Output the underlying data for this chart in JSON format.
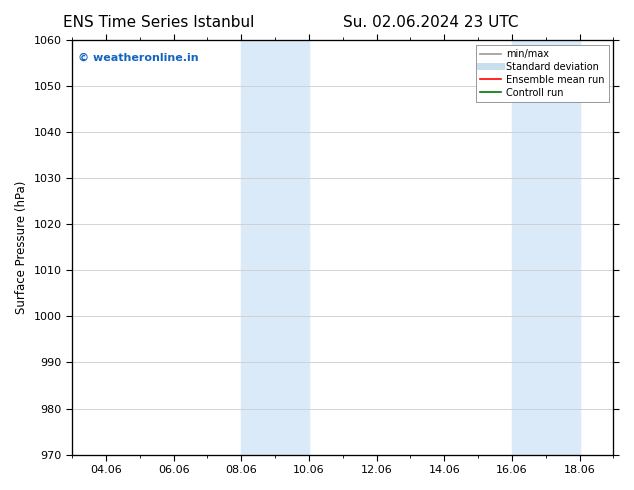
{
  "title_left": "ENS Time Series Istanbul",
  "title_right": "Su. 02.06.2024 23 UTC",
  "ylabel": "Surface Pressure (hPa)",
  "ylim": [
    970,
    1060
  ],
  "yticks": [
    970,
    980,
    990,
    1000,
    1010,
    1020,
    1030,
    1040,
    1050,
    1060
  ],
  "xtick_labels": [
    "04.06",
    "06.06",
    "08.06",
    "10.06",
    "12.06",
    "14.06",
    "16.06",
    "18.06"
  ],
  "xtick_positions": [
    2,
    4,
    6,
    8,
    10,
    12,
    14,
    16
  ],
  "xlim": [
    1,
    17
  ],
  "shaded_bands": [
    {
      "x_start": 6,
      "x_end": 8,
      "color": "#daeaf8"
    },
    {
      "x_start": 14,
      "x_end": 16,
      "color": "#daeaf8"
    }
  ],
  "watermark_text": "© weatheronline.in",
  "watermark_color": "#1565C0",
  "legend_items": [
    {
      "label": "min/max",
      "color": "#999999",
      "lw": 1.2,
      "ls": "-"
    },
    {
      "label": "Standard deviation",
      "color": "#c8dff0",
      "lw": 5,
      "ls": "-"
    },
    {
      "label": "Ensemble mean run",
      "color": "#ff0000",
      "lw": 1.2,
      "ls": "-"
    },
    {
      "label": "Controll run",
      "color": "#007700",
      "lw": 1.2,
      "ls": "-"
    }
  ],
  "bg_color": "#ffffff",
  "grid_color": "#cccccc",
  "title_fontsize": 11,
  "label_fontsize": 8.5,
  "tick_fontsize": 8
}
